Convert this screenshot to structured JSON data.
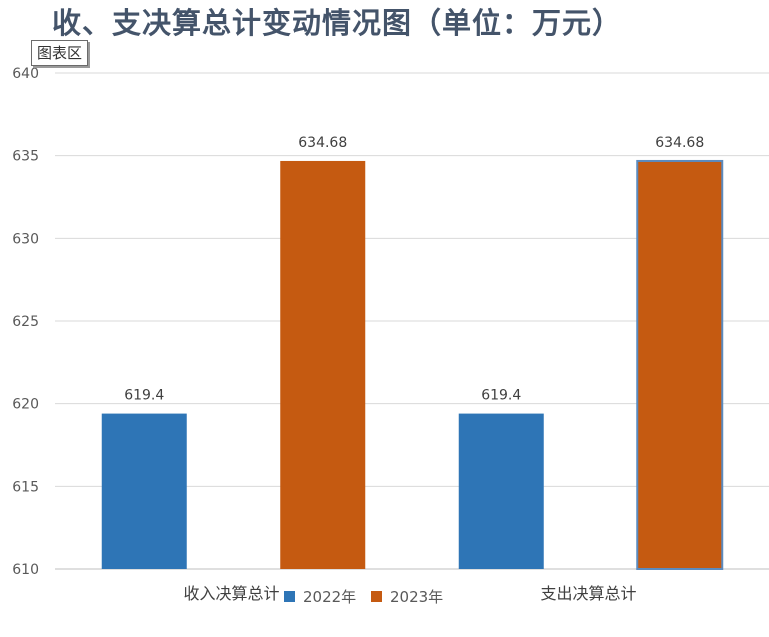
{
  "chart_data": {
    "type": "bar",
    "title": "收、支决算总计变动情况图（单位：万元）",
    "categories": [
      "收入决算总计",
      "支出决算总计"
    ],
    "series": [
      {
        "name": "2022年",
        "values": [
          619.4,
          619.4
        ],
        "labels": [
          "619.4",
          "619.4"
        ],
        "color": "#2e75b6"
      },
      {
        "name": "2023年",
        "values": [
          634.68,
          634.68
        ],
        "labels": [
          "634.68",
          "634.68"
        ],
        "color": "#c55a11"
      }
    ],
    "ylim": [
      610,
      640
    ],
    "yticks": [
      "610",
      "615",
      "620",
      "625",
      "630",
      "635",
      "640"
    ],
    "xlabel": "",
    "ylabel": "",
    "grid": true,
    "legend_position": "bottom"
  },
  "tooltip": {
    "text": "图表区"
  },
  "colors": {
    "gridline": "#d9d9d9",
    "axis": "#bfbfbf"
  }
}
